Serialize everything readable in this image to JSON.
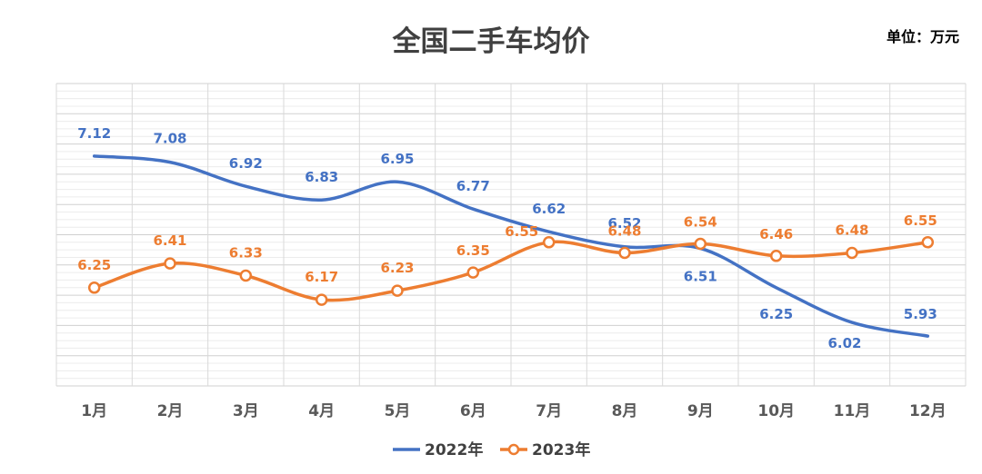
{
  "chart_data": {
    "type": "line",
    "title": "全国二手车均价",
    "unit_label": "单位：万元",
    "categories": [
      "1月",
      "2月",
      "3月",
      "4月",
      "5月",
      "6月",
      "7月",
      "8月",
      "9月",
      "10月",
      "11月",
      "12月"
    ],
    "ylim": [
      5.6,
      7.6
    ],
    "grid": true,
    "legend_position": "bottom",
    "series": [
      {
        "name": "2022年",
        "color": "#4472C4",
        "values": [
          7.12,
          7.08,
          6.92,
          6.83,
          6.95,
          6.77,
          6.62,
          6.52,
          6.51,
          6.25,
          6.02,
          5.93
        ],
        "labels": [
          "7.12",
          "7.08",
          "6.92",
          "6.83",
          "6.95",
          "6.77",
          "6.62",
          "6.52",
          "6.51",
          "6.25",
          "6.02",
          "5.93"
        ]
      },
      {
        "name": "2023年",
        "color": "#ED7D31",
        "values": [
          6.25,
          6.41,
          6.33,
          6.17,
          6.23,
          6.35,
          6.55,
          6.48,
          6.54,
          6.46,
          6.48,
          6.55
        ],
        "labels": [
          "6.25",
          "6.41",
          "6.33",
          "6.17",
          "6.23",
          "6.35",
          "6.55",
          "6.48",
          "6.54",
          "6.46",
          "6.48",
          "6.55"
        ]
      }
    ]
  }
}
